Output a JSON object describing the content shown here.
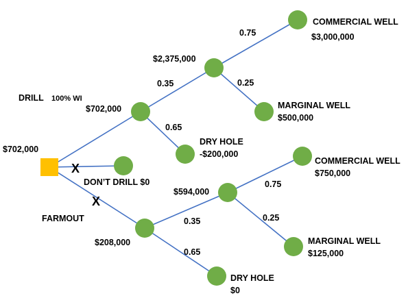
{
  "root_value": "$702,000",
  "drill": {
    "label": "DRILL",
    "label_note": "100% WI",
    "value": "$702,000",
    "success_value": "$2,375,000",
    "p_success": 0.35,
    "p_dry": 0.65,
    "commercial": {
      "prob": 0.75,
      "label": "COMMERCIAL WELL",
      "value": "$3,000,000"
    },
    "marginal": {
      "prob": 0.25,
      "label": "MARGINAL WELL",
      "value": "$500,000"
    },
    "dry": {
      "label": "DRY HOLE",
      "value": "-$200,000"
    }
  },
  "dont_drill": {
    "mark": "X",
    "label": "DON’T DRILL $0"
  },
  "farmout": {
    "mark": "X",
    "label": "FARMOUT",
    "value": "$208,000",
    "success_value": "$594,000",
    "p_success": 0.35,
    "p_dry": 0.65,
    "commercial": {
      "prob": 0.75,
      "label": "COMMERCIAL WELL",
      "value": "$750,000"
    },
    "marginal": {
      "prob": 0.25,
      "label": "MARGINAL WELL",
      "value": "$125,000"
    },
    "dry": {
      "label": "DRY HOLE",
      "value": "$0"
    }
  }
}
